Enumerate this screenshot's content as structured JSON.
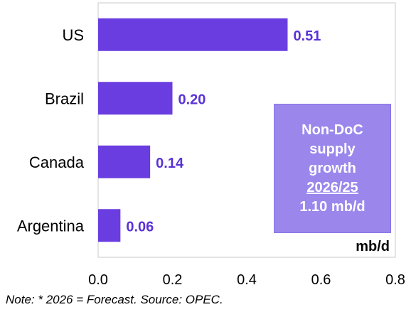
{
  "colors": {
    "bar": "#6a3de0",
    "value_label": "#5a32d6",
    "callout_bg": "#9b87ec"
  },
  "chart_data": {
    "type": "bar",
    "orientation": "horizontal",
    "categories": [
      "US",
      "Brazil",
      "Canada",
      "Argentina"
    ],
    "values": [
      0.51,
      0.2,
      0.14,
      0.06
    ],
    "value_labels": [
      "0.51",
      "0.20",
      "0.14",
      "0.06"
    ],
    "xlim": [
      0.0,
      0.8
    ],
    "xticks": [
      "0.0",
      "0.2",
      "0.4",
      "0.6",
      "0.8"
    ],
    "unit": "mb/d",
    "grid": false
  },
  "callout": {
    "line1": "Non-DoC",
    "line2": "supply",
    "line3": "growth",
    "line4": "2026/25",
    "line5": "1.10 mb/d"
  },
  "note": "Note: * 2026 = Forecast. Source: OPEC."
}
